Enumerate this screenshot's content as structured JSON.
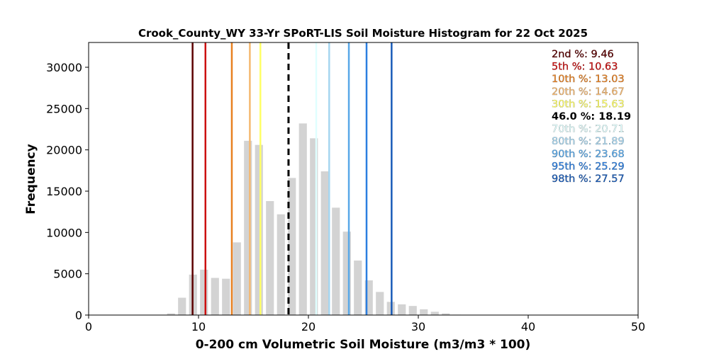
{
  "chart_data": {
    "type": "bar",
    "title": "Crook_County_WY 33-Yr SPoRT-LIS Soil Moisture Histogram for 22 Oct 2025",
    "xlabel": "0-200 cm Volumetric Soil Moisture (m3/m3 * 100)",
    "ylabel": "Frequency",
    "xlim": [
      0,
      50
    ],
    "ylim": [
      0,
      33000
    ],
    "xticks": [
      "0",
      "10",
      "20",
      "30",
      "40",
      "50"
    ],
    "yticks": [
      "0",
      "5000",
      "10000",
      "15000",
      "20000",
      "25000",
      "30000"
    ],
    "grid": false,
    "legend_position": "top-right",
    "bar_color": "#d3d3d3",
    "bars": [
      {
        "x": 7.5,
        "value": 200
      },
      {
        "x": 8.5,
        "value": 2100
      },
      {
        "x": 9.5,
        "value": 4900
      },
      {
        "x": 10.5,
        "value": 5500
      },
      {
        "x": 11.5,
        "value": 4500
      },
      {
        "x": 12.5,
        "value": 4400
      },
      {
        "x": 13.5,
        "value": 8800
      },
      {
        "x": 14.5,
        "value": 21100
      },
      {
        "x": 15.5,
        "value": 20600
      },
      {
        "x": 16.5,
        "value": 13800
      },
      {
        "x": 17.5,
        "value": 12200
      },
      {
        "x": 18.5,
        "value": 16600
      },
      {
        "x": 19.5,
        "value": 23200
      },
      {
        "x": 20.5,
        "value": 21400
      },
      {
        "x": 21.5,
        "value": 17400
      },
      {
        "x": 22.5,
        "value": 13000
      },
      {
        "x": 23.5,
        "value": 10100
      },
      {
        "x": 24.5,
        "value": 6600
      },
      {
        "x": 25.5,
        "value": 4200
      },
      {
        "x": 26.5,
        "value": 2800
      },
      {
        "x": 27.5,
        "value": 1600
      },
      {
        "x": 28.5,
        "value": 1300
      },
      {
        "x": 29.5,
        "value": 1100
      },
      {
        "x": 30.5,
        "value": 700
      },
      {
        "x": 31.5,
        "value": 400
      },
      {
        "x": 32.5,
        "value": 200
      },
      {
        "x": 33.5,
        "value": 50
      }
    ],
    "percentiles": [
      {
        "label": "2nd %: 9.46",
        "value": 9.46,
        "color": "#5c0000",
        "style": "solid"
      },
      {
        "label": "5th %: 10.63",
        "value": 10.63,
        "color": "#cc1010",
        "style": "solid"
      },
      {
        "label": "10th %: 13.03",
        "value": 13.03,
        "color": "#e88020",
        "style": "solid"
      },
      {
        "label": "20th %: 14.67",
        "value": 14.67,
        "color": "#f5b870",
        "style": "solid"
      },
      {
        "label": "30th %: 15.63",
        "value": 15.63,
        "color": "#ffff66",
        "style": "solid"
      },
      {
        "label": "46.0 %: 18.19",
        "value": 18.19,
        "color": "#000000",
        "style": "dashed"
      },
      {
        "label": "70th %: 20.71",
        "value": 20.71,
        "color": "#e0ffff",
        "style": "solid"
      },
      {
        "label": "80th %: 21.89",
        "value": 21.89,
        "color": "#a6d6f0",
        "style": "solid"
      },
      {
        "label": "90th %: 23.68",
        "value": 23.68,
        "color": "#58a8e8",
        "style": "solid"
      },
      {
        "label": "95th %: 25.29",
        "value": 25.29,
        "color": "#2b7ee0",
        "style": "solid"
      },
      {
        "label": "98th %: 27.57",
        "value": 27.57,
        "color": "#1a5cb8",
        "style": "solid"
      }
    ]
  }
}
